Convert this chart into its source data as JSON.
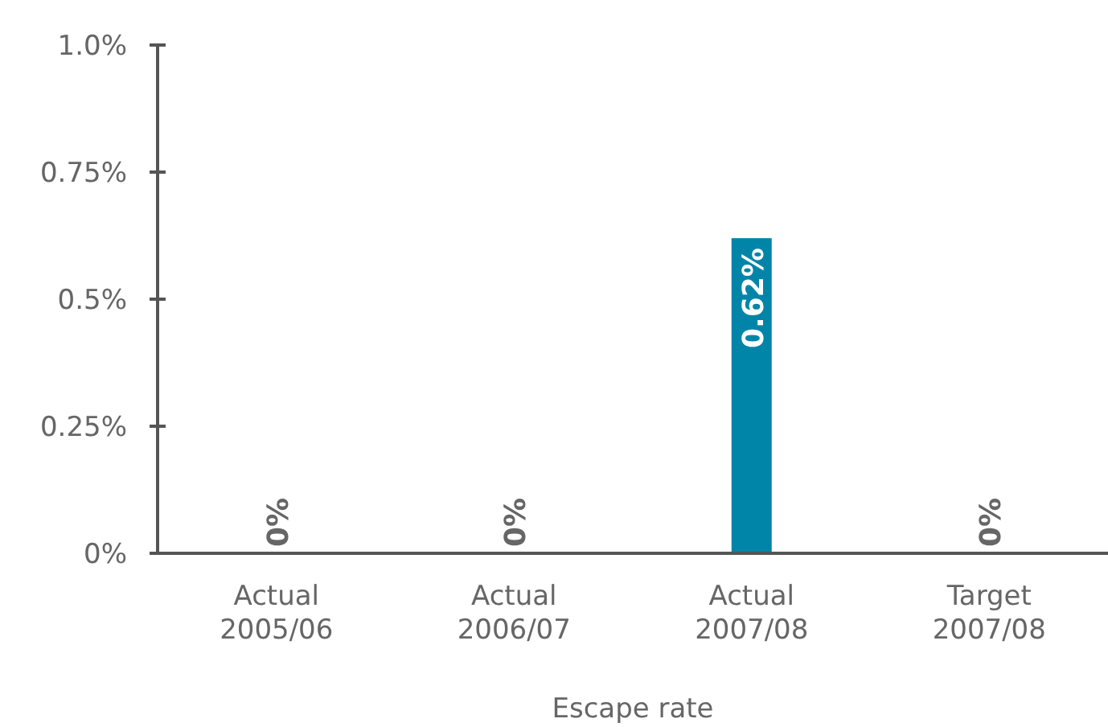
{
  "chart_data": {
    "type": "bar",
    "xlabel": "Escape rate",
    "categories": [
      "Actual 2005/06",
      "Actual 2006/07",
      "Actual 2007/08",
      "Target 2007/08"
    ],
    "values": [
      0,
      0,
      0.62,
      0
    ],
    "value_labels": [
      "0%",
      "0%",
      "0.62%",
      "0%"
    ],
    "color": "#0085a8",
    "ylim": [
      0,
      1.0
    ],
    "yticks": [
      {
        "value": 0,
        "label": "0%"
      },
      {
        "value": 0.25,
        "label": "0.25%"
      },
      {
        "value": 0.5,
        "label": "0.5%"
      },
      {
        "value": 0.75,
        "label": "0.75%"
      },
      {
        "value": 1.0,
        "label": "1.0%"
      }
    ],
    "grid": false
  }
}
